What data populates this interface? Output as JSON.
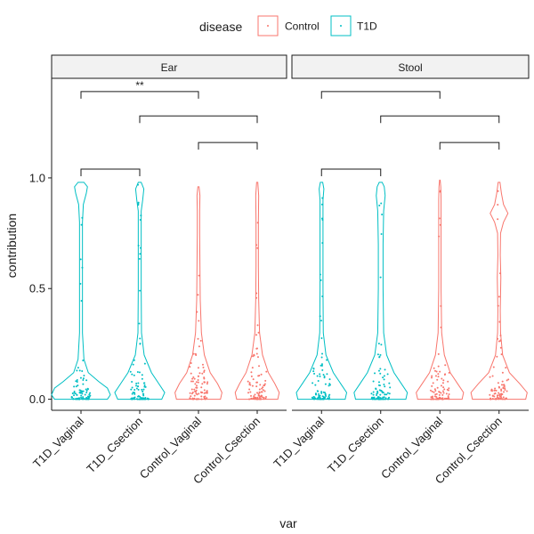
{
  "chart_data": {
    "type": "violin",
    "title": "",
    "xlabel": "var",
    "ylabel": "contribution",
    "ylim": [
      -0.05,
      1.45
    ],
    "yticks": [
      "0.0",
      "0.5",
      "1.0"
    ],
    "legend": {
      "title": "disease",
      "position": "top",
      "items": [
        {
          "name": "Control",
          "color": "#F8766D"
        },
        {
          "name": "T1D",
          "color": "#00BFC4"
        }
      ]
    },
    "categories": [
      "T1D_Vaginal",
      "T1D_Csection",
      "Control_Vaginal",
      "Control_Csection"
    ],
    "category_group": [
      "T1D",
      "T1D",
      "Control",
      "Control"
    ],
    "grid": false,
    "panels": [
      {
        "name": "Ear",
        "violins": [
          {
            "category": "T1D_Vaginal",
            "ymax": 0.98,
            "profile": [
              [
                0.0,
                0.9
              ],
              [
                0.02,
                1.0
              ],
              [
                0.05,
                0.9
              ],
              [
                0.08,
                0.6
              ],
              [
                0.12,
                0.25
              ],
              [
                0.18,
                0.1
              ],
              [
                0.3,
                0.05
              ],
              [
                0.5,
                0.05
              ],
              [
                0.7,
                0.05
              ],
              [
                0.8,
                0.05
              ],
              [
                0.88,
                0.08
              ],
              [
                0.93,
                0.18
              ],
              [
                0.96,
                0.22
              ],
              [
                0.98,
                0.1
              ]
            ]
          },
          {
            "category": "T1D_Csection",
            "ymax": 0.98,
            "profile": [
              [
                0.0,
                0.75
              ],
              [
                0.03,
                0.85
              ],
              [
                0.07,
                0.65
              ],
              [
                0.12,
                0.4
              ],
              [
                0.2,
                0.15
              ],
              [
                0.3,
                0.06
              ],
              [
                0.5,
                0.05
              ],
              [
                0.7,
                0.05
              ],
              [
                0.85,
                0.05
              ],
              [
                0.9,
                0.1
              ],
              [
                0.95,
                0.14
              ],
              [
                0.98,
                0.05
              ]
            ]
          },
          {
            "category": "Control_Vaginal",
            "ymax": 0.96,
            "profile": [
              [
                0.0,
                0.75
              ],
              [
                0.03,
                0.8
              ],
              [
                0.07,
                0.65
              ],
              [
                0.12,
                0.4
              ],
              [
                0.2,
                0.2
              ],
              [
                0.3,
                0.1
              ],
              [
                0.45,
                0.06
              ],
              [
                0.6,
                0.05
              ],
              [
                0.75,
                0.04
              ],
              [
                0.85,
                0.04
              ],
              [
                0.92,
                0.05
              ],
              [
                0.96,
                0.02
              ]
            ]
          },
          {
            "category": "Control_Csection",
            "ymax": 0.98,
            "profile": [
              [
                0.0,
                0.7
              ],
              [
                0.03,
                0.75
              ],
              [
                0.07,
                0.6
              ],
              [
                0.12,
                0.38
              ],
              [
                0.2,
                0.18
              ],
              [
                0.3,
                0.08
              ],
              [
                0.45,
                0.05
              ],
              [
                0.6,
                0.04
              ],
              [
                0.8,
                0.04
              ],
              [
                0.92,
                0.05
              ],
              [
                0.98,
                0.02
              ]
            ]
          }
        ],
        "comparisons": [
          {
            "from": "T1D_Vaginal",
            "to": "T1D_Csection",
            "y": 1.04,
            "label": ""
          },
          {
            "from": "T1D_Vaginal",
            "to": "Control_Vaginal",
            "y": 1.39,
            "label": "**"
          },
          {
            "from": "T1D_Csection",
            "to": "Control_Csection",
            "y": 1.28,
            "label": ""
          },
          {
            "from": "Control_Vaginal",
            "to": "Control_Csection",
            "y": 1.16,
            "label": ""
          }
        ]
      },
      {
        "name": "Stool",
        "violins": [
          {
            "category": "T1D_Vaginal",
            "ymax": 0.98,
            "profile": [
              [
                0.0,
                0.8
              ],
              [
                0.03,
                0.85
              ],
              [
                0.07,
                0.65
              ],
              [
                0.12,
                0.4
              ],
              [
                0.2,
                0.15
              ],
              [
                0.3,
                0.06
              ],
              [
                0.5,
                0.05
              ],
              [
                0.7,
                0.05
              ],
              [
                0.9,
                0.05
              ],
              [
                0.95,
                0.08
              ],
              [
                0.98,
                0.04
              ]
            ]
          },
          {
            "category": "T1D_Csection",
            "ymax": 0.98,
            "profile": [
              [
                0.0,
                0.85
              ],
              [
                0.03,
                0.9
              ],
              [
                0.07,
                0.7
              ],
              [
                0.12,
                0.45
              ],
              [
                0.2,
                0.2
              ],
              [
                0.3,
                0.1
              ],
              [
                0.5,
                0.08
              ],
              [
                0.7,
                0.08
              ],
              [
                0.85,
                0.1
              ],
              [
                0.92,
                0.15
              ],
              [
                0.96,
                0.12
              ],
              [
                0.98,
                0.05
              ]
            ]
          },
          {
            "category": "Control_Vaginal",
            "ymax": 0.99,
            "profile": [
              [
                0.0,
                0.75
              ],
              [
                0.03,
                0.8
              ],
              [
                0.07,
                0.6
              ],
              [
                0.12,
                0.35
              ],
              [
                0.2,
                0.15
              ],
              [
                0.3,
                0.06
              ],
              [
                0.5,
                0.04
              ],
              [
                0.7,
                0.04
              ],
              [
                0.9,
                0.04
              ],
              [
                0.96,
                0.03
              ],
              [
                0.99,
                0.01
              ]
            ]
          },
          {
            "category": "Control_Csection",
            "ymax": 0.98,
            "profile": [
              [
                0.0,
                0.9
              ],
              [
                0.03,
                0.95
              ],
              [
                0.07,
                0.7
              ],
              [
                0.12,
                0.35
              ],
              [
                0.2,
                0.12
              ],
              [
                0.3,
                0.05
              ],
              [
                0.4,
                0.04
              ],
              [
                0.55,
                0.06
              ],
              [
                0.65,
                0.04
              ],
              [
                0.75,
                0.05
              ],
              [
                0.8,
                0.15
              ],
              [
                0.84,
                0.3
              ],
              [
                0.88,
                0.15
              ],
              [
                0.93,
                0.08
              ],
              [
                0.98,
                0.03
              ]
            ]
          }
        ],
        "comparisons": [
          {
            "from": "T1D_Vaginal",
            "to": "T1D_Csection",
            "y": 1.04,
            "label": ""
          },
          {
            "from": "T1D_Vaginal",
            "to": "Control_Vaginal",
            "y": 1.39,
            "label": ""
          },
          {
            "from": "T1D_Csection",
            "to": "Control_Csection",
            "y": 1.28,
            "label": ""
          },
          {
            "from": "Control_Vaginal",
            "to": "Control_Csection",
            "y": 1.16,
            "label": ""
          }
        ]
      }
    ]
  }
}
